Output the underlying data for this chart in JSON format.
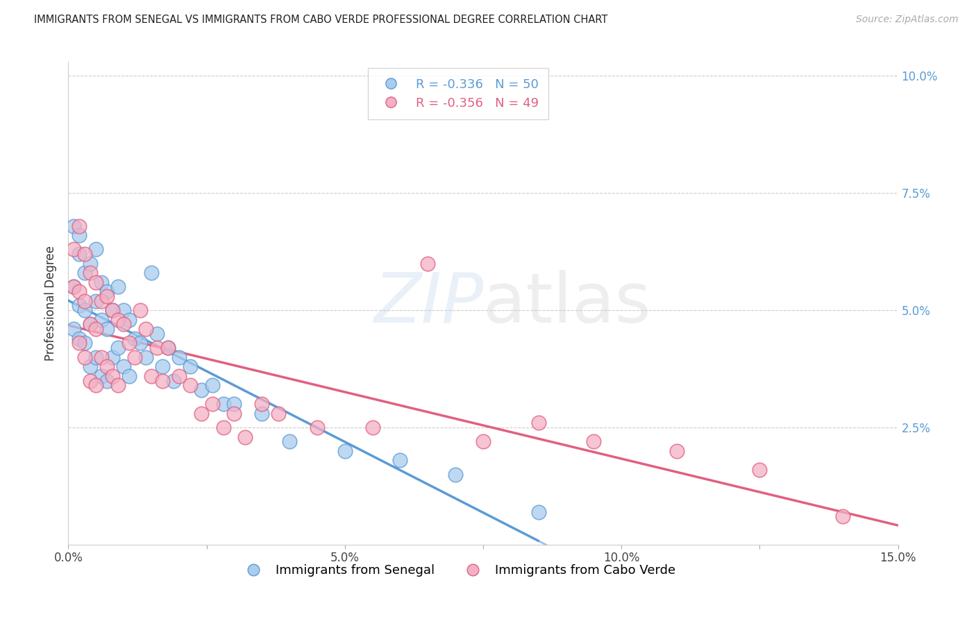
{
  "title": "IMMIGRANTS FROM SENEGAL VS IMMIGRANTS FROM CABO VERDE PROFESSIONAL DEGREE CORRELATION CHART",
  "source": "Source: ZipAtlas.com",
  "ylabel": "Professional Degree",
  "right_ylabel_color": "#5b9bd5",
  "xlim": [
    0,
    0.15
  ],
  "ylim": [
    0,
    0.103
  ],
  "senegal_color": "#aaccee",
  "senegal_color_dark": "#5b9bd5",
  "caboverde_color": "#f4b0c4",
  "caboverde_color_dark": "#e06080",
  "senegal_R": -0.336,
  "senegal_N": 50,
  "caboverde_R": -0.356,
  "caboverde_N": 49,
  "background_color": "#ffffff",
  "grid_color": "#cccccc",
  "senegal_x": [
    0.001,
    0.001,
    0.001,
    0.002,
    0.002,
    0.002,
    0.002,
    0.003,
    0.003,
    0.003,
    0.004,
    0.004,
    0.004,
    0.005,
    0.005,
    0.005,
    0.006,
    0.006,
    0.006,
    0.007,
    0.007,
    0.007,
    0.008,
    0.008,
    0.009,
    0.009,
    0.01,
    0.01,
    0.011,
    0.011,
    0.012,
    0.013,
    0.014,
    0.015,
    0.016,
    0.017,
    0.018,
    0.019,
    0.02,
    0.022,
    0.024,
    0.026,
    0.028,
    0.03,
    0.035,
    0.04,
    0.05,
    0.06,
    0.07,
    0.085
  ],
  "senegal_y": [
    0.068,
    0.055,
    0.046,
    0.066,
    0.062,
    0.051,
    0.044,
    0.058,
    0.05,
    0.043,
    0.06,
    0.047,
    0.038,
    0.063,
    0.052,
    0.04,
    0.056,
    0.048,
    0.036,
    0.054,
    0.046,
    0.035,
    0.05,
    0.04,
    0.055,
    0.042,
    0.05,
    0.038,
    0.048,
    0.036,
    0.044,
    0.043,
    0.04,
    0.058,
    0.045,
    0.038,
    0.042,
    0.035,
    0.04,
    0.038,
    0.033,
    0.034,
    0.03,
    0.03,
    0.028,
    0.022,
    0.02,
    0.018,
    0.015,
    0.007
  ],
  "caboverde_x": [
    0.001,
    0.001,
    0.002,
    0.002,
    0.002,
    0.003,
    0.003,
    0.003,
    0.004,
    0.004,
    0.004,
    0.005,
    0.005,
    0.005,
    0.006,
    0.006,
    0.007,
    0.007,
    0.008,
    0.008,
    0.009,
    0.009,
    0.01,
    0.011,
    0.012,
    0.013,
    0.014,
    0.015,
    0.016,
    0.017,
    0.018,
    0.02,
    0.022,
    0.024,
    0.026,
    0.028,
    0.03,
    0.032,
    0.035,
    0.038,
    0.045,
    0.055,
    0.065,
    0.075,
    0.085,
    0.095,
    0.11,
    0.125,
    0.14
  ],
  "caboverde_y": [
    0.063,
    0.055,
    0.068,
    0.054,
    0.043,
    0.062,
    0.052,
    0.04,
    0.058,
    0.047,
    0.035,
    0.056,
    0.046,
    0.034,
    0.052,
    0.04,
    0.053,
    0.038,
    0.05,
    0.036,
    0.048,
    0.034,
    0.047,
    0.043,
    0.04,
    0.05,
    0.046,
    0.036,
    0.042,
    0.035,
    0.042,
    0.036,
    0.034,
    0.028,
    0.03,
    0.025,
    0.028,
    0.023,
    0.03,
    0.028,
    0.025,
    0.025,
    0.06,
    0.022,
    0.026,
    0.022,
    0.02,
    0.016,
    0.006
  ],
  "sen_line_x0": 0.0,
  "sen_line_y0": 0.045,
  "sen_line_x1": 0.085,
  "sen_line_y1": 0.005,
  "cv_line_x0": 0.0,
  "cv_line_y0": 0.042,
  "cv_line_x1": 0.15,
  "cv_line_y1": 0.003
}
